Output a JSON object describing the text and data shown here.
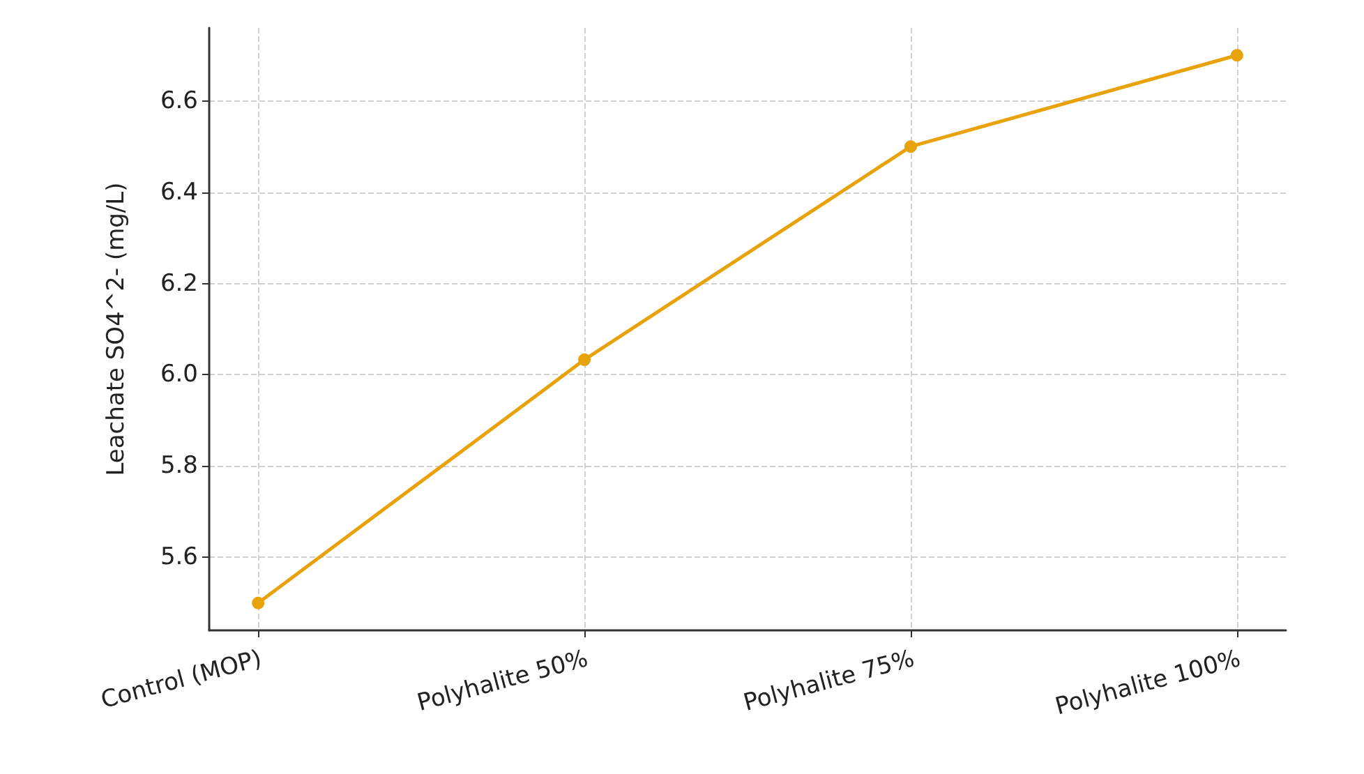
{
  "chart_data": {
    "type": "line",
    "ylabel": "Leachate SO4^2- (mg/L)",
    "categories": [
      "Control (MOP)",
      "Polyhalite 50%",
      "Polyhalite 75%",
      "Polyhalite 100%"
    ],
    "series": [
      {
        "color": "#e8a20c",
        "values": [
          5.5,
          6.033,
          6.5,
          6.7
        ]
      }
    ],
    "ylim": [
      5.44,
      6.76
    ],
    "yticks": [
      5.6,
      5.8,
      {
        "value": 6.0,
        "label": "6.0"
      },
      6.2,
      6.4,
      6.6
    ],
    "grid": true,
    "marker": "circle",
    "line_style": "solid"
  }
}
